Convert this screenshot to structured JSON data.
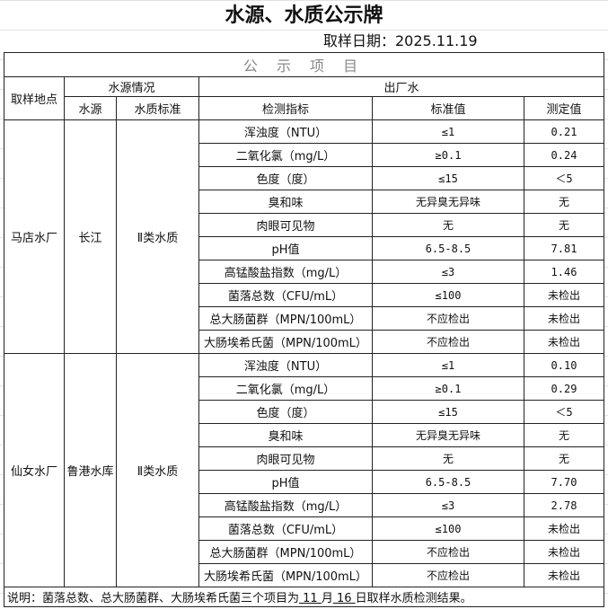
{
  "title": "水源、水质公示牌",
  "sample_date": "取样日期：2025.11.19",
  "section_title": "公 示 项 目",
  "headers": {
    "location": "取样地点",
    "source_info": "水源情况",
    "outlet": "出厂水",
    "source": "水源",
    "quality_standard": "水质标准",
    "indicator": "检测指标",
    "standard_value": "标准值",
    "measured_value": "测定值"
  },
  "sites": [
    {
      "location": "马店水厂",
      "source": "长江",
      "standard": "Ⅱ类水质",
      "rows": [
        [
          "浑浊度（NTU）",
          "≤1",
          "0.21"
        ],
        [
          "二氧化氯（mg/L）",
          "≥0.1",
          "0.24"
        ],
        [
          "色度（度）",
          "≤15",
          "＜5"
        ],
        [
          "臭和味",
          "无异臭无异味",
          "无"
        ],
        [
          "肉眼可见物",
          "无",
          "无"
        ],
        [
          "pH值",
          "6.5-8.5",
          "7.81"
        ],
        [
          "高锰酸盐指数（mg/L）",
          "≤3",
          "1.46"
        ],
        [
          "菌落总数（CFU/mL）",
          "≤100",
          "未检出"
        ],
        [
          "总大肠菌群（MPN/100mL）",
          "不应检出",
          "未检出"
        ],
        [
          "大肠埃希氏菌（MPN/100mL）",
          "不应检出",
          "未检出"
        ]
      ]
    },
    {
      "location": "仙女水厂",
      "source": "鲁港水库",
      "standard": "Ⅱ类水质",
      "rows": [
        [
          "浑浊度（NTU）",
          "≤1",
          "0.10"
        ],
        [
          "二氧化氯（mg/L）",
          "≥0.1",
          "0.29"
        ],
        [
          "色度（度）",
          "≤15",
          "＜5"
        ],
        [
          "臭和味",
          "无异臭无异味",
          "无"
        ],
        [
          "肉眼可见物",
          "无",
          "无"
        ],
        [
          "pH值",
          "6.5-8.5",
          "7.70"
        ],
        [
          "高锰酸盐指数（mg/L）",
          "≤3",
          "2.78"
        ],
        [
          "菌落总数（CFU/mL）",
          "≤100",
          "未检出"
        ],
        [
          "总大肠菌群（MPN/100mL）",
          "不应检出",
          "未检出"
        ],
        [
          "大肠埃希氏菌（MPN/100mL）",
          "不应检出",
          "未检出"
        ]
      ]
    }
  ],
  "note": {
    "prefix": "说明：菌落总数、总大肠菌群、大肠埃希氏菌三个项目为",
    "month": " 11 ",
    "month_label": "月",
    "day": " 16 ",
    "suffix": "日取样水质检测结果。"
  }
}
